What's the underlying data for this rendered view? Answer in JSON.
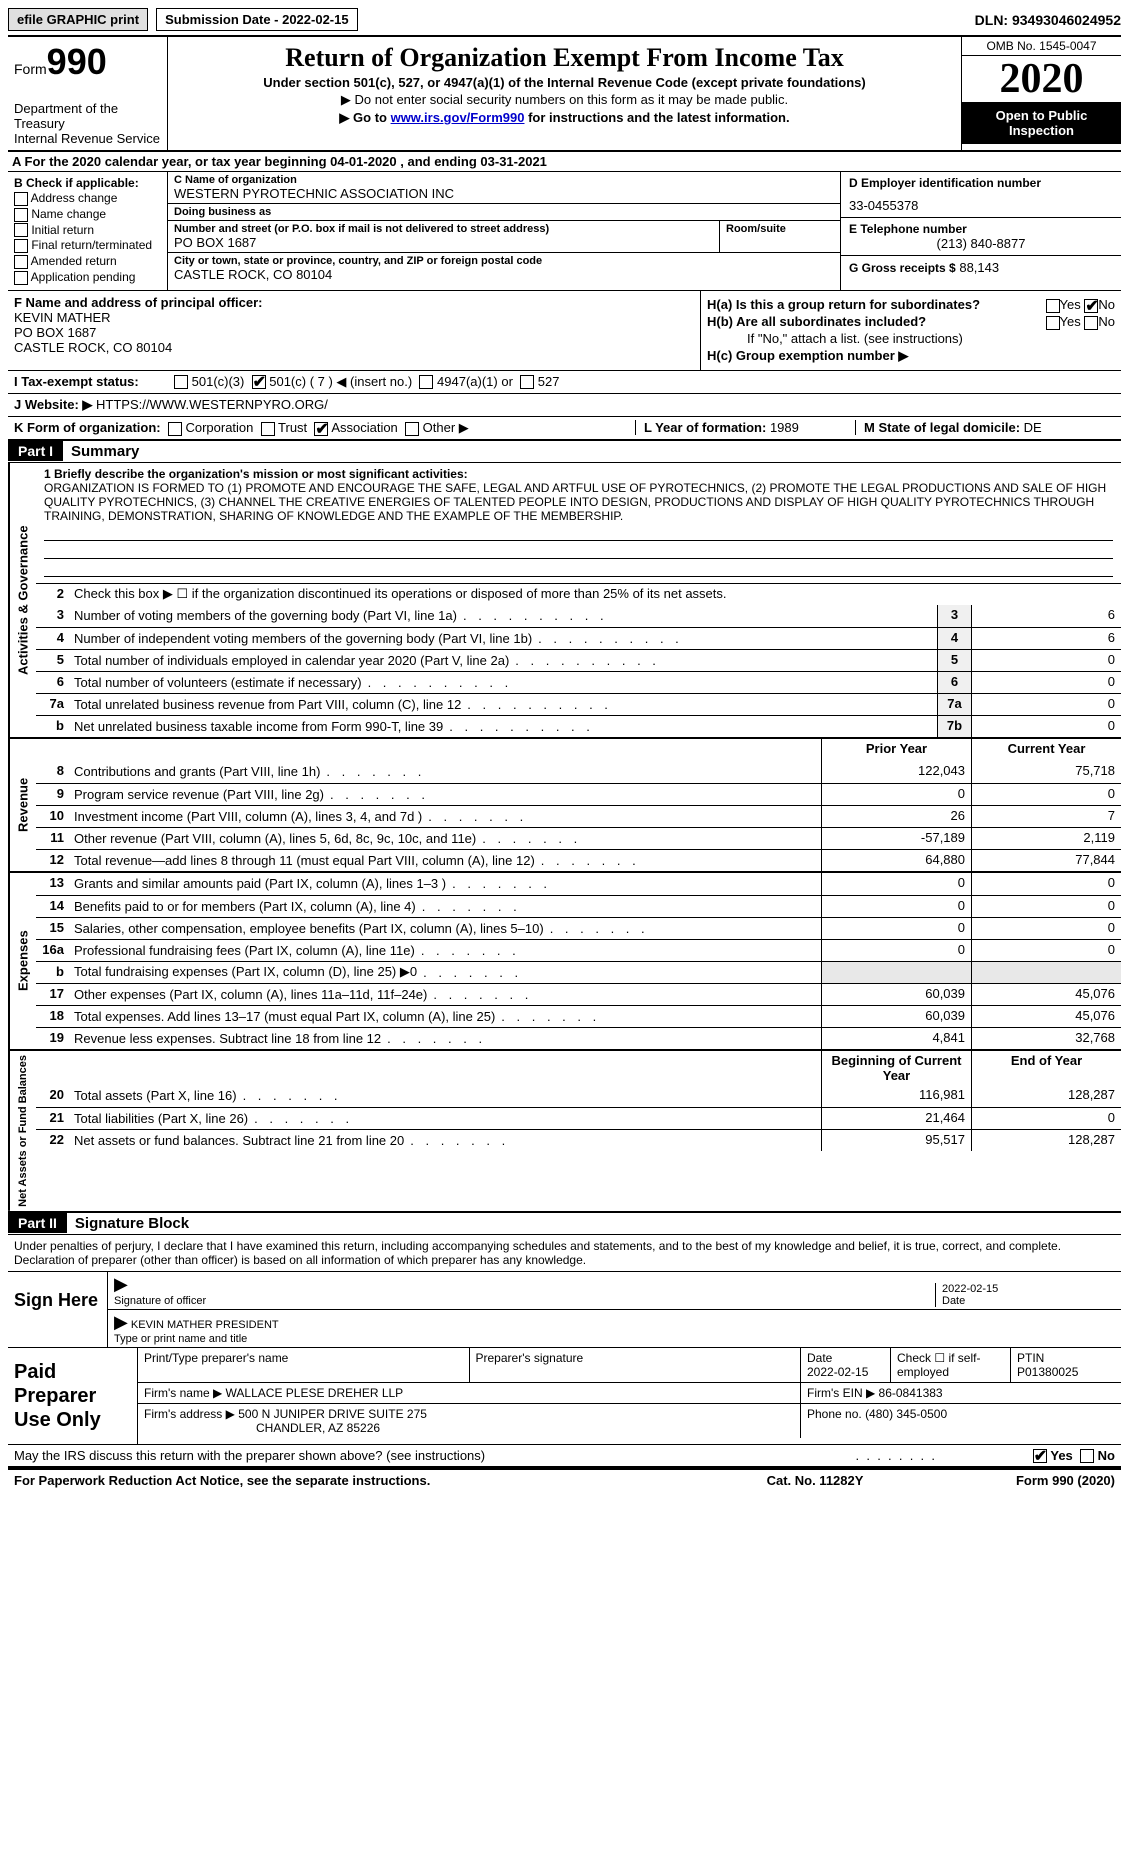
{
  "topbar": {
    "efile": "efile GRAPHIC print",
    "submission": "Submission Date - 2022-02-15",
    "dln": "DLN: 93493046024952"
  },
  "header": {
    "form_word": "Form",
    "form_num": "990",
    "dept": "Department of the Treasury",
    "irs": "Internal Revenue Service",
    "title": "Return of Organization Exempt From Income Tax",
    "sub1": "Under section 501(c), 527, or 4947(a)(1) of the Internal Revenue Code (except private foundations)",
    "sub2": "▶ Do not enter social security numbers on this form as it may be made public.",
    "sub3_a": "▶ Go to ",
    "sub3_link": "www.irs.gov/Form990",
    "sub3_b": " for instructions and the latest information.",
    "omb": "OMB No. 1545-0047",
    "year": "2020",
    "open": "Open to Public Inspection"
  },
  "rowA": "A  For the 2020 calendar year, or tax year beginning 04-01-2020   , and ending 03-31-2021",
  "colB": {
    "hdr": "B Check if applicable:",
    "items": [
      "Address change",
      "Name change",
      "Initial return",
      "Final return/terminated",
      "Amended return",
      "Application pending"
    ]
  },
  "colC": {
    "name_lbl": "C Name of organization",
    "name": "WESTERN PYROTECHNIC ASSOCIATION INC",
    "dba_lbl": "Doing business as",
    "dba": "",
    "addr_lbl": "Number and street (or P.O. box if mail is not delivered to street address)",
    "addr": "PO BOX 1687",
    "room_lbl": "Room/suite",
    "city_lbl": "City or town, state or province, country, and ZIP or foreign postal code",
    "city": "CASTLE ROCK, CO  80104"
  },
  "colD": {
    "ein_lbl": "D Employer identification number",
    "ein": "33-0455378",
    "tel_lbl": "E Telephone number",
    "tel": "(213) 840-8877",
    "gross_lbl": "G Gross receipts $",
    "gross": "88,143"
  },
  "colF": {
    "lbl": "F Name and address of principal officer:",
    "name": "KEVIN MATHER",
    "addr1": "PO BOX 1687",
    "addr2": "CASTLE ROCK, CO  80104"
  },
  "colH": {
    "ha": "H(a)  Is this a group return for subordinates?",
    "hb": "H(b)  Are all subordinates included?",
    "hb_note": "If \"No,\" attach a list. (see instructions)",
    "hc": "H(c)  Group exemption number ▶",
    "yes": "Yes",
    "no": "No"
  },
  "rowI": {
    "lbl": "I   Tax-exempt status:",
    "o1": "501(c)(3)",
    "o2": "501(c) ( 7 ) ◀ (insert no.)",
    "o3": "4947(a)(1) or",
    "o4": "527"
  },
  "rowJ": {
    "lbl": "J   Website: ▶",
    "val": "HTTPS://WWW.WESTERNPYRO.ORG/"
  },
  "rowK": {
    "lbl": "K Form of organization:",
    "o1": "Corporation",
    "o2": "Trust",
    "o3": "Association",
    "o4": "Other ▶",
    "L_lbl": "L Year of formation:",
    "L_val": "1989",
    "M_lbl": "M State of legal domicile:",
    "M_val": "DE"
  },
  "part1": {
    "hdr": "Part I",
    "title": "Summary",
    "mission_lbl": "1   Briefly describe the organization's mission or most significant activities:",
    "mission": "ORGANIZATION IS FORMED TO (1) PROMOTE AND ENCOURAGE THE SAFE, LEGAL AND ARTFUL USE OF PYROTECHNICS, (2) PROMOTE THE LEGAL PRODUCTIONS AND SALE OF HIGH QUALITY PYROTECHNICS, (3) CHANNEL THE CREATIVE ENERGIES OF TALENTED PEOPLE INTO DESIGN, PRODUCTIONS AND DISPLAY OF HIGH QUALITY PYROTECHNICS THROUGH TRAINING, DEMONSTRATION, SHARING OF KNOWLEDGE AND THE EXAMPLE OF THE MEMBERSHIP.",
    "line2": "Check this box ▶ ☐  if the organization discontinued its operations or disposed of more than 25% of its net assets."
  },
  "sides": {
    "gov": "Activities & Governance",
    "rev": "Revenue",
    "exp": "Expenses",
    "net": "Net Assets or Fund Balances"
  },
  "gov_lines": [
    {
      "n": "3",
      "d": "Number of voting members of the governing body (Part VI, line 1a)",
      "b": "3",
      "v": "6"
    },
    {
      "n": "4",
      "d": "Number of independent voting members of the governing body (Part VI, line 1b)",
      "b": "4",
      "v": "6"
    },
    {
      "n": "5",
      "d": "Total number of individuals employed in calendar year 2020 (Part V, line 2a)",
      "b": "5",
      "v": "0"
    },
    {
      "n": "6",
      "d": "Total number of volunteers (estimate if necessary)",
      "b": "6",
      "v": "0"
    },
    {
      "n": "7a",
      "d": "Total unrelated business revenue from Part VIII, column (C), line 12",
      "b": "7a",
      "v": "0"
    },
    {
      "n": "b",
      "d": "Net unrelated business taxable income from Form 990-T, line 39",
      "b": "7b",
      "v": "0"
    }
  ],
  "col_hdr": {
    "prior": "Prior Year",
    "current": "Current Year",
    "boy": "Beginning of Current Year",
    "eoy": "End of Year"
  },
  "rev_lines": [
    {
      "n": "8",
      "d": "Contributions and grants (Part VIII, line 1h)",
      "p": "122,043",
      "c": "75,718"
    },
    {
      "n": "9",
      "d": "Program service revenue (Part VIII, line 2g)",
      "p": "0",
      "c": "0"
    },
    {
      "n": "10",
      "d": "Investment income (Part VIII, column (A), lines 3, 4, and 7d )",
      "p": "26",
      "c": "7"
    },
    {
      "n": "11",
      "d": "Other revenue (Part VIII, column (A), lines 5, 6d, 8c, 9c, 10c, and 11e)",
      "p": "-57,189",
      "c": "2,119"
    },
    {
      "n": "12",
      "d": "Total revenue—add lines 8 through 11 (must equal Part VIII, column (A), line 12)",
      "p": "64,880",
      "c": "77,844"
    }
  ],
  "exp_lines": [
    {
      "n": "13",
      "d": "Grants and similar amounts paid (Part IX, column (A), lines 1–3 )",
      "p": "0",
      "c": "0"
    },
    {
      "n": "14",
      "d": "Benefits paid to or for members (Part IX, column (A), line 4)",
      "p": "0",
      "c": "0"
    },
    {
      "n": "15",
      "d": "Salaries, other compensation, employee benefits (Part IX, column (A), lines 5–10)",
      "p": "0",
      "c": "0"
    },
    {
      "n": "16a",
      "d": "Professional fundraising fees (Part IX, column (A), line 11e)",
      "p": "0",
      "c": "0"
    },
    {
      "n": "b",
      "d": "Total fundraising expenses (Part IX, column (D), line 25) ▶0",
      "p": "",
      "c": ""
    },
    {
      "n": "17",
      "d": "Other expenses (Part IX, column (A), lines 11a–11d, 11f–24e)",
      "p": "60,039",
      "c": "45,076"
    },
    {
      "n": "18",
      "d": "Total expenses. Add lines 13–17 (must equal Part IX, column (A), line 25)",
      "p": "60,039",
      "c": "45,076"
    },
    {
      "n": "19",
      "d": "Revenue less expenses. Subtract line 18 from line 12",
      "p": "4,841",
      "c": "32,768"
    }
  ],
  "net_lines": [
    {
      "n": "20",
      "d": "Total assets (Part X, line 16)",
      "p": "116,981",
      "c": "128,287"
    },
    {
      "n": "21",
      "d": "Total liabilities (Part X, line 26)",
      "p": "21,464",
      "c": "0"
    },
    {
      "n": "22",
      "d": "Net assets or fund balances. Subtract line 21 from line 20",
      "p": "95,517",
      "c": "128,287"
    }
  ],
  "part2": {
    "hdr": "Part II",
    "title": "Signature Block",
    "intro": "Under penalties of perjury, I declare that I have examined this return, including accompanying schedules and statements, and to the best of my knowledge and belief, it is true, correct, and complete. Declaration of preparer (other than officer) is based on all information of which preparer has any knowledge."
  },
  "sign": {
    "here": "Sign Here",
    "sig_lbl": "Signature of officer",
    "date_lbl": "Date",
    "date": "2022-02-15",
    "name": "KEVIN MATHER  PRESIDENT",
    "name_lbl": "Type or print name and title"
  },
  "prep": {
    "hdr": "Paid Preparer Use Only",
    "c1": "Print/Type preparer's name",
    "c2": "Preparer's signature",
    "c3_lbl": "Date",
    "c3": "2022-02-15",
    "c4": "Check ☐ if self-employed",
    "c5_lbl": "PTIN",
    "c5": "P01380025",
    "firm_lbl": "Firm's name    ▶",
    "firm": "WALLACE PLESE DREHER LLP",
    "ein_lbl": "Firm's EIN ▶",
    "ein": "86-0841383",
    "addr_lbl": "Firm's address ▶",
    "addr1": "500 N JUNIPER DRIVE SUITE 275",
    "addr2": "CHANDLER, AZ  85226",
    "phone_lbl": "Phone no.",
    "phone": "(480) 345-0500"
  },
  "footer": {
    "discuss": "May the IRS discuss this return with the preparer shown above? (see instructions)",
    "yes": "Yes",
    "no": "No",
    "paperwork": "For Paperwork Reduction Act Notice, see the separate instructions.",
    "cat": "Cat. No. 11282Y",
    "form": "Form 990 (2020)"
  }
}
